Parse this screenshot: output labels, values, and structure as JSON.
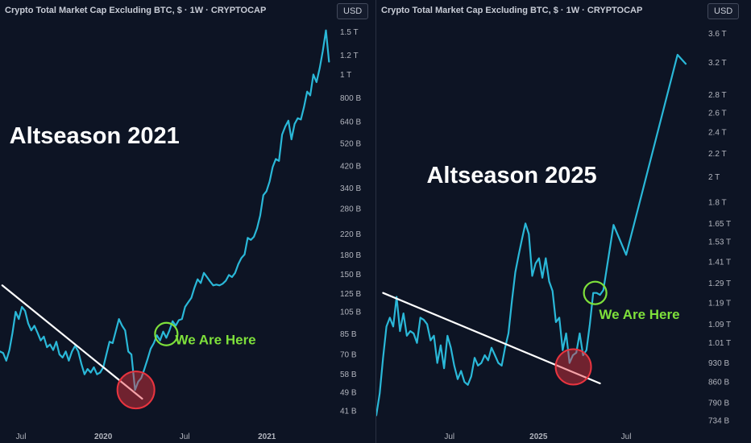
{
  "chart_data": [
    {
      "type": "line",
      "title": "Crypto Total Market Cap Excluding BTC, $ · 1W · CRYPTOCAP",
      "currency": "USD",
      "annotation_title": "Altseason 2021",
      "annotation_marker": "We Are Here",
      "y_scale": "log",
      "ylim": [
        38,
        1650
      ],
      "xlim": [
        "2019-05-15",
        "2021-06-01"
      ],
      "y_ticks": [
        {
          "label": "1.5 T",
          "value": 1500
        },
        {
          "label": "1.2 T",
          "value": 1200
        },
        {
          "label": "1 T",
          "value": 1000
        },
        {
          "label": "800 B",
          "value": 800
        },
        {
          "label": "640 B",
          "value": 640
        },
        {
          "label": "520 B",
          "value": 520
        },
        {
          "label": "420 B",
          "value": 420
        },
        {
          "label": "340 B",
          "value": 340
        },
        {
          "label": "280 B",
          "value": 280
        },
        {
          "label": "220 B",
          "value": 220
        },
        {
          "label": "180 B",
          "value": 180
        },
        {
          "label": "150 B",
          "value": 150
        },
        {
          "label": "125 B",
          "value": 125
        },
        {
          "label": "105 B",
          "value": 105
        },
        {
          "label": "85 B",
          "value": 85
        },
        {
          "label": "70 B",
          "value": 70
        },
        {
          "label": "58 B",
          "value": 58
        },
        {
          "label": "49 B",
          "value": 49
        },
        {
          "label": "41 B",
          "value": 41
        }
      ],
      "x_ticks": [
        {
          "label": "Jul",
          "date": "2019-07-01"
        },
        {
          "label": "2020",
          "date": "2020-01-01"
        },
        {
          "label": "Jul",
          "date": "2020-07-01"
        },
        {
          "label": "2021",
          "date": "2021-01-01"
        }
      ],
      "series": [
        {
          "color": "#2ab8d8",
          "points": [
            [
              "2019-05-15",
              72
            ],
            [
              "2019-05-22",
              71
            ],
            [
              "2019-05-29",
              66
            ],
            [
              "2019-06-05",
              73
            ],
            [
              "2019-06-12",
              86
            ],
            [
              "2019-06-19",
              105
            ],
            [
              "2019-06-26",
              98
            ],
            [
              "2019-07-03",
              110
            ],
            [
              "2019-07-10",
              106
            ],
            [
              "2019-07-17",
              94
            ],
            [
              "2019-07-24",
              88
            ],
            [
              "2019-07-31",
              92
            ],
            [
              "2019-08-07",
              86
            ],
            [
              "2019-08-14",
              80
            ],
            [
              "2019-08-21",
              83
            ],
            [
              "2019-08-28",
              75
            ],
            [
              "2019-09-04",
              77
            ],
            [
              "2019-09-11",
              73
            ],
            [
              "2019-09-18",
              79
            ],
            [
              "2019-09-25",
              70
            ],
            [
              "2019-10-02",
              68
            ],
            [
              "2019-10-09",
              72
            ],
            [
              "2019-10-16",
              66
            ],
            [
              "2019-10-23",
              72
            ],
            [
              "2019-10-30",
              76
            ],
            [
              "2019-11-06",
              72
            ],
            [
              "2019-11-13",
              64
            ],
            [
              "2019-11-20",
              58
            ],
            [
              "2019-11-27",
              61
            ],
            [
              "2019-12-04",
              59
            ],
            [
              "2019-12-11",
              62
            ],
            [
              "2019-12-18",
              58
            ],
            [
              "2019-12-25",
              59
            ],
            [
              "2020-01-01",
              62
            ],
            [
              "2020-01-08",
              70
            ],
            [
              "2020-01-15",
              79
            ],
            [
              "2020-01-22",
              78
            ],
            [
              "2020-02-05",
              98
            ],
            [
              "2020-02-12",
              92
            ],
            [
              "2020-02-19",
              88
            ],
            [
              "2020-02-26",
              72
            ],
            [
              "2020-03-04",
              70
            ],
            [
              "2020-03-12",
              50
            ],
            [
              "2020-03-19",
              54
            ],
            [
              "2020-03-26",
              56
            ],
            [
              "2020-04-02",
              61
            ],
            [
              "2020-04-09",
              67
            ],
            [
              "2020-04-16",
              74
            ],
            [
              "2020-04-23",
              78
            ],
            [
              "2020-04-30",
              84
            ],
            [
              "2020-05-07",
              80
            ],
            [
              "2020-05-14",
              87
            ],
            [
              "2020-05-21",
              82
            ],
            [
              "2020-05-28",
              88
            ],
            [
              "2020-06-04",
              96
            ],
            [
              "2020-06-11",
              92
            ],
            [
              "2020-06-18",
              97
            ],
            [
              "2020-06-25",
              98
            ],
            [
              "2020-07-02",
              110
            ],
            [
              "2020-07-09",
              115
            ],
            [
              "2020-07-16",
              120
            ],
            [
              "2020-07-23",
              132
            ],
            [
              "2020-07-30",
              143
            ],
            [
              "2020-08-06",
              138
            ],
            [
              "2020-08-13",
              152
            ],
            [
              "2020-08-20",
              146
            ],
            [
              "2020-08-27",
              140
            ],
            [
              "2020-09-03",
              135
            ],
            [
              "2020-09-10",
              136
            ],
            [
              "2020-09-17",
              135
            ],
            [
              "2020-09-24",
              137
            ],
            [
              "2020-10-01",
              141
            ],
            [
              "2020-10-08",
              149
            ],
            [
              "2020-10-15",
              146
            ],
            [
              "2020-10-22",
              152
            ],
            [
              "2020-10-29",
              165
            ],
            [
              "2020-11-05",
              175
            ],
            [
              "2020-11-12",
              181
            ],
            [
              "2020-11-19",
              212
            ],
            [
              "2020-11-26",
              208
            ],
            [
              "2020-12-03",
              214
            ],
            [
              "2020-12-10",
              232
            ],
            [
              "2020-12-17",
              262
            ],
            [
              "2020-12-24",
              318
            ],
            [
              "2020-12-31",
              330
            ],
            [
              "2021-01-07",
              362
            ],
            [
              "2021-01-14",
              415
            ],
            [
              "2021-01-21",
              448
            ],
            [
              "2021-01-28",
              440
            ],
            [
              "2021-02-04",
              565
            ],
            [
              "2021-02-11",
              610
            ],
            [
              "2021-02-18",
              645
            ],
            [
              "2021-02-25",
              540
            ],
            [
              "2021-03-04",
              625
            ],
            [
              "2021-03-11",
              660
            ],
            [
              "2021-03-18",
              652
            ],
            [
              "2021-03-25",
              735
            ],
            [
              "2021-04-01",
              850
            ],
            [
              "2021-04-08",
              820
            ],
            [
              "2021-04-15",
              1000
            ],
            [
              "2021-04-22",
              930
            ],
            [
              "2021-04-29",
              1060
            ],
            [
              "2021-05-06",
              1250
            ],
            [
              "2021-05-13",
              1520
            ],
            [
              "2021-05-20",
              1130
            ]
          ]
        }
      ],
      "overlays": [
        {
          "kind": "trendline",
          "color": "#ffffff",
          "from": [
            "2019-05-20",
            135
          ],
          "to": [
            "2020-03-28",
            46
          ]
        },
        {
          "kind": "circle-marker",
          "color": "#e8343f",
          "at": [
            "2020-03-14",
            50
          ]
        },
        {
          "kind": "circle-marker",
          "color": "#7ee03b",
          "at": [
            "2020-05-21",
            85
          ]
        }
      ],
      "marker_label_color": "#7ee03b",
      "marker_label_at": [
        "2020-06-10",
        77
      ],
      "title_at": [
        "2019-06-05",
        520
      ]
    },
    {
      "type": "line",
      "title": "Crypto Total Market Cap Excluding BTC, $ · 1W · CRYPTOCAP",
      "currency": "USD",
      "annotation_title": "Altseason 2025",
      "annotation_marker": "We Are Here",
      "y_scale": "log",
      "ylim": [
        715,
        3780
      ],
      "xlim": [
        "2024-02-01",
        "2025-12-01"
      ],
      "y_ticks": [
        {
          "label": "3.6 T",
          "value": 3600
        },
        {
          "label": "3.2 T",
          "value": 3200
        },
        {
          "label": "2.8 T",
          "value": 2800
        },
        {
          "label": "2.6 T",
          "value": 2600
        },
        {
          "label": "2.4 T",
          "value": 2400
        },
        {
          "label": "2.2 T",
          "value": 2200
        },
        {
          "label": "2 T",
          "value": 2000
        },
        {
          "label": "1.8 T",
          "value": 1800
        },
        {
          "label": "1.65 T",
          "value": 1650
        },
        {
          "label": "1.53 T",
          "value": 1530
        },
        {
          "label": "1.41 T",
          "value": 1410
        },
        {
          "label": "1.29 T",
          "value": 1290
        },
        {
          "label": "1.19 T",
          "value": 1190
        },
        {
          "label": "1.09 T",
          "value": 1090
        },
        {
          "label": "1.01 T",
          "value": 1010
        },
        {
          "label": "930 B",
          "value": 930
        },
        {
          "label": "860 B",
          "value": 860
        },
        {
          "label": "790 B",
          "value": 790
        },
        {
          "label": "734 B",
          "value": 734
        }
      ],
      "x_ticks": [
        {
          "label": "Jul",
          "date": "2024-07-01"
        },
        {
          "label": "2025",
          "date": "2025-01-01"
        },
        {
          "label": "Jul",
          "date": "2025-07-01"
        }
      ],
      "series": [
        {
          "color": "#2ab8d8",
          "points": [
            [
              "2024-02-01",
              750
            ],
            [
              "2024-02-08",
              820
            ],
            [
              "2024-02-15",
              950
            ],
            [
              "2024-02-22",
              1080
            ],
            [
              "2024-02-29",
              1120
            ],
            [
              "2024-03-07",
              1080
            ],
            [
              "2024-03-14",
              1220
            ],
            [
              "2024-03-21",
              1060
            ],
            [
              "2024-03-28",
              1140
            ],
            [
              "2024-04-04",
              1040
            ],
            [
              "2024-04-11",
              1060
            ],
            [
              "2024-04-18",
              1050
            ],
            [
              "2024-04-25",
              1010
            ],
            [
              "2024-05-02",
              1120
            ],
            [
              "2024-05-09",
              1110
            ],
            [
              "2024-05-16",
              1090
            ],
            [
              "2024-05-23",
              1020
            ],
            [
              "2024-05-30",
              1040
            ],
            [
              "2024-06-06",
              930
            ],
            [
              "2024-06-13",
              1000
            ],
            [
              "2024-06-20",
              910
            ],
            [
              "2024-06-27",
              1040
            ],
            [
              "2024-07-04",
              990
            ],
            [
              "2024-07-11",
              920
            ],
            [
              "2024-07-18",
              870
            ],
            [
              "2024-07-25",
              900
            ],
            [
              "2024-08-01",
              860
            ],
            [
              "2024-08-08",
              850
            ],
            [
              "2024-08-15",
              880
            ],
            [
              "2024-08-22",
              950
            ],
            [
              "2024-08-29",
              920
            ],
            [
              "2024-09-05",
              930
            ],
            [
              "2024-09-12",
              960
            ],
            [
              "2024-09-19",
              940
            ],
            [
              "2024-09-26",
              990
            ],
            [
              "2024-10-03",
              960
            ],
            [
              "2024-10-10",
              930
            ],
            [
              "2024-10-17",
              920
            ],
            [
              "2024-10-24",
              990
            ],
            [
              "2024-10-31",
              1050
            ],
            [
              "2024-11-07",
              1200
            ],
            [
              "2024-11-14",
              1350
            ],
            [
              "2024-11-21",
              1450
            ],
            [
              "2024-11-28",
              1550
            ],
            [
              "2024-12-05",
              1650
            ],
            [
              "2024-12-12",
              1580
            ],
            [
              "2024-12-19",
              1330
            ],
            [
              "2024-12-26",
              1400
            ],
            [
              "2025-01-02",
              1430
            ],
            [
              "2025-01-09",
              1320
            ],
            [
              "2025-01-16",
              1430
            ],
            [
              "2025-01-23",
              1300
            ],
            [
              "2025-01-30",
              1250
            ],
            [
              "2025-02-06",
              1100
            ],
            [
              "2025-02-13",
              1120
            ],
            [
              "2025-02-20",
              980
            ],
            [
              "2025-02-27",
              1050
            ],
            [
              "2025-03-06",
              930
            ],
            [
              "2025-03-13",
              960
            ],
            [
              "2025-03-20",
              970
            ],
            [
              "2025-03-27",
              1050
            ],
            [
              "2025-04-03",
              960
            ],
            [
              "2025-04-10",
              980
            ],
            [
              "2025-04-17",
              1090
            ],
            [
              "2025-04-24",
              1240
            ],
            [
              "2025-05-01",
              1240
            ],
            [
              "2025-05-08",
              1230
            ],
            [
              "2025-05-15",
              1255
            ],
            [
              "2025-06-05",
              1640
            ],
            [
              "2025-07-01",
              1450
            ],
            [
              "2025-10-15",
              3300
            ],
            [
              "2025-11-01",
              3180
            ]
          ]
        }
      ],
      "overlays": [
        {
          "kind": "trendline",
          "color": "#ffffff",
          "from": [
            "2024-02-15",
            1240
          ],
          "to": [
            "2025-05-08",
            855
          ]
        },
        {
          "kind": "circle-marker",
          "color": "#e8343f",
          "at": [
            "2025-03-14",
            915
          ]
        },
        {
          "kind": "circle-marker",
          "color": "#7ee03b",
          "at": [
            "2025-04-28",
            1240
          ]
        }
      ],
      "marker_label_color": "#7ee03b",
      "marker_label_at": [
        "2025-05-06",
        1115
      ],
      "title_at": [
        "2024-05-15",
        1950
      ]
    }
  ]
}
